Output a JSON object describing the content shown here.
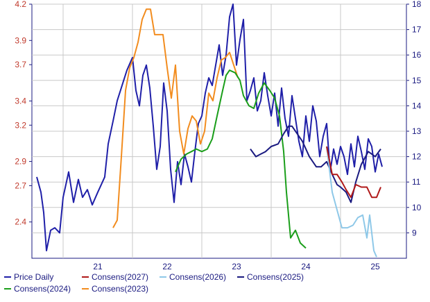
{
  "chart_data": {
    "type": "line",
    "x_ticks": [
      "21",
      "22",
      "23",
      "24",
      "25"
    ],
    "x_range": [
      2020.55,
      2025.95
    ],
    "y_left": {
      "ticks": [
        "2.4",
        "2.7",
        "2.9",
        "3.2",
        "3.4",
        "3.7",
        "3.9",
        "4.2"
      ],
      "range": [
        2.1,
        4.2
      ]
    },
    "y_right": {
      "ticks": [
        "9",
        "10",
        "11",
        "12",
        "13",
        "14",
        "15",
        "16",
        "17",
        "18"
      ],
      "range": [
        8,
        18
      ]
    },
    "grid": true,
    "legend_position": "bottom",
    "series": [
      {
        "name": "Price Daily",
        "color": "#1f1fa8",
        "axis": "right",
        "x": [
          2020.62,
          2020.68,
          2020.72,
          2020.76,
          2020.82,
          2020.88,
          2020.95,
          2021.0,
          2021.08,
          2021.15,
          2021.22,
          2021.28,
          2021.35,
          2021.42,
          2021.5,
          2021.55,
          2021.6,
          2021.65,
          2021.72,
          2021.78,
          2021.85,
          2021.92,
          2022.0,
          2022.05,
          2022.1,
          2022.15,
          2022.2,
          2022.25,
          2022.3,
          2022.35,
          2022.4,
          2022.45,
          2022.5,
          2022.55,
          2022.6,
          2022.65,
          2022.7,
          2022.75,
          2022.8,
          2022.85,
          2022.9,
          2022.95,
          2023.0,
          2023.05,
          2023.1,
          2023.15,
          2023.2,
          2023.25,
          2023.3,
          2023.35,
          2023.4,
          2023.45,
          2023.5,
          2023.55,
          2023.6,
          2023.65,
          2023.7,
          2023.75,
          2023.8,
          2023.85,
          2023.9,
          2023.95,
          2024.0,
          2024.05,
          2024.1,
          2024.15,
          2024.2,
          2024.25,
          2024.3,
          2024.35,
          2024.4,
          2024.45,
          2024.5,
          2024.55,
          2024.6,
          2024.65,
          2024.7,
          2024.75,
          2024.8,
          2024.85,
          2024.9,
          2024.95,
          2025.0,
          2025.05,
          2025.1,
          2025.15,
          2025.2,
          2025.25,
          2025.3,
          2025.35,
          2025.4,
          2025.45,
          2025.5,
          2025.55,
          2025.6
        ],
        "values": [
          11.2,
          10.6,
          9.8,
          8.3,
          9.1,
          9.2,
          9.0,
          10.4,
          11.4,
          10.2,
          11.1,
          10.4,
          10.7,
          10.1,
          10.6,
          10.9,
          11.2,
          12.5,
          13.4,
          14.2,
          14.8,
          15.4,
          15.9,
          14.6,
          14.0,
          15.2,
          15.6,
          14.7,
          13.2,
          11.5,
          12.4,
          14.9,
          13.8,
          11.5,
          10.2,
          11.8,
          10.9,
          12.1,
          11.6,
          11.0,
          12.2,
          13.3,
          13.6,
          14.5,
          15.1,
          14.8,
          15.6,
          16.4,
          15.2,
          16.0,
          17.5,
          18.0,
          15.6,
          16.6,
          17.4,
          14.2,
          14.6,
          15.1,
          13.8,
          14.2,
          15.3,
          14.4,
          13.6,
          14.5,
          13.2,
          14.7,
          13.5,
          12.8,
          14.4,
          13.5,
          12.6,
          12.0,
          13.6,
          12.6,
          14.0,
          13.4,
          12.0,
          12.8,
          13.3,
          11.4,
          12.3,
          11.7,
          12.4,
          12.0,
          11.3,
          12.5,
          11.6,
          12.8,
          12.2,
          11.5,
          12.7,
          12.4,
          11.4,
          12.1,
          11.6
        ]
      },
      {
        "name": "Consens(2027)",
        "color": "#b01818",
        "axis": "right",
        "x": [
          2024.8,
          2024.88,
          2024.95,
          2025.02,
          2025.08,
          2025.15,
          2025.22,
          2025.3,
          2025.38,
          2025.45,
          2025.52,
          2025.58
        ],
        "values": [
          12.4,
          11.3,
          11.3,
          11.0,
          10.7,
          10.4,
          10.9,
          10.8,
          10.8,
          10.4,
          10.4,
          10.8
        ]
      },
      {
        "name": "Consens(2026)",
        "color": "#8ec8e8",
        "axis": "right",
        "x": [
          2024.8,
          2024.88,
          2024.95,
          2025.02,
          2025.1,
          2025.18,
          2025.25,
          2025.32,
          2025.38,
          2025.42,
          2025.48,
          2025.52
        ],
        "values": [
          12.4,
          10.6,
          9.9,
          9.2,
          9.2,
          9.3,
          9.6,
          9.7,
          8.8,
          9.7,
          8.3,
          8.05
        ]
      },
      {
        "name": "Consens(2025)",
        "color": "#1a1a80",
        "axis": "right",
        "x": [
          2023.7,
          2023.78,
          2023.85,
          2023.92,
          2024.0,
          2024.1,
          2024.18,
          2024.25,
          2024.3,
          2024.45,
          2024.55,
          2024.65,
          2024.72,
          2024.8,
          2024.88,
          2024.95,
          2025.0,
          2025.08,
          2025.15,
          2025.22,
          2025.3,
          2025.4,
          2025.5,
          2025.58
        ],
        "values": [
          12.3,
          12.0,
          12.1,
          12.2,
          12.4,
          12.5,
          12.9,
          13.2,
          13.2,
          12.6,
          12.0,
          11.6,
          11.6,
          11.8,
          11.3,
          10.9,
          10.8,
          10.6,
          10.2,
          11.0,
          11.7,
          12.2,
          12.0,
          12.3
        ]
      },
      {
        "name": "Consens(2024)",
        "color": "#1a9e1a",
        "axis": "right",
        "x": [
          2022.62,
          2022.7,
          2022.78,
          2022.85,
          2022.92,
          2023.0,
          2023.08,
          2023.15,
          2023.22,
          2023.3,
          2023.35,
          2023.4,
          2023.48,
          2023.55,
          2023.6,
          2023.68,
          2023.75,
          2023.82,
          2023.9,
          2023.98,
          2024.05,
          2024.12,
          2024.18,
          2024.22,
          2024.28,
          2024.35,
          2024.42,
          2024.5
        ],
        "values": [
          11.4,
          11.9,
          12.1,
          12.2,
          12.3,
          12.2,
          12.3,
          12.7,
          13.6,
          14.6,
          15.2,
          15.4,
          15.3,
          15.0,
          14.4,
          14.0,
          13.9,
          14.5,
          14.9,
          14.6,
          14.3,
          13.6,
          12.2,
          10.6,
          8.8,
          9.1,
          8.6,
          8.4
        ]
      },
      {
        "name": "Consens(2023)",
        "color": "#f28c1e",
        "axis": "right",
        "x": [
          2021.72,
          2021.78,
          2021.84,
          2021.9,
          2021.96,
          2022.02,
          2022.08,
          2022.14,
          2022.2,
          2022.26,
          2022.32,
          2022.38,
          2022.44,
          2022.5,
          2022.56,
          2022.62,
          2022.68,
          2022.74,
          2022.8,
          2022.86,
          2022.92,
          2022.98,
          2023.04,
          2023.1,
          2023.16,
          2023.22,
          2023.28,
          2023.34,
          2023.4,
          2023.46,
          2023.52
        ],
        "values": [
          9.2,
          9.5,
          12.0,
          14.6,
          15.5,
          15.9,
          16.5,
          17.4,
          17.8,
          17.8,
          16.8,
          16.8,
          16.8,
          15.5,
          14.3,
          15.6,
          13.0,
          12.1,
          13.1,
          13.6,
          13.4,
          12.5,
          13.0,
          14.5,
          14.2,
          15.1,
          15.8,
          15.9,
          16.1,
          15.6,
          15.1
        ]
      }
    ],
    "legend": [
      {
        "label": "Price Daily",
        "color": "#1f1fa8"
      },
      {
        "label": "Consens(2027)",
        "color": "#b01818"
      },
      {
        "label": "Consens(2026)",
        "color": "#8ec8e8"
      },
      {
        "label": "Consens(2025)",
        "color": "#1a1a80"
      },
      {
        "label": "Consens(2024)",
        "color": "#1a9e1a"
      },
      {
        "label": "Consens(2023)",
        "color": "#f28c1e"
      }
    ]
  }
}
